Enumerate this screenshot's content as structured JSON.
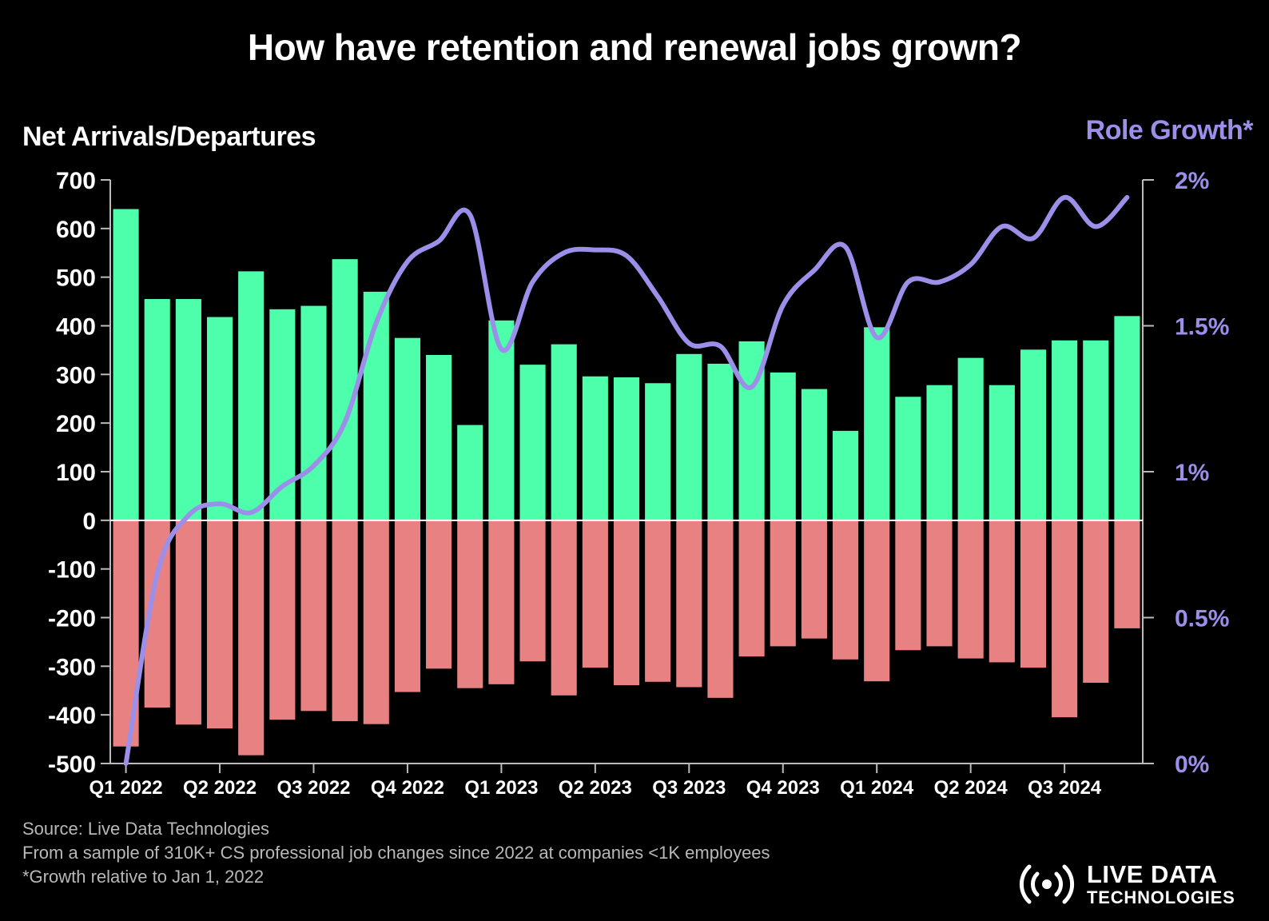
{
  "title": "How have retention and renewal jobs grown?",
  "footnotes": {
    "source": "Source: Live Data Technologies",
    "sample": "From a sample of 310K+ CS professional job changes since 2022 at companies <1K employees",
    "growth_note": "*Growth relative to Jan 1, 2022"
  },
  "logo": {
    "line1": "LIVE DATA",
    "line2": "TECHNOLOGIES"
  },
  "colors": {
    "background": "#000000",
    "arrivals": "#4dffaa",
    "departures": "#e88282",
    "role_growth": "#9b8fea",
    "axis": "#bbbbbb",
    "text": "#ffffff"
  },
  "chart_data": {
    "type": "bar",
    "title": "How have retention and renewal jobs grown?",
    "ylabel": "Net Arrivals/Departures",
    "y2label": "Role Growth*",
    "ylim": [
      -500,
      700
    ],
    "y2lim": [
      0,
      2
    ],
    "yticks": [
      700,
      600,
      500,
      400,
      300,
      200,
      100,
      0,
      -100,
      -200,
      -300,
      -400,
      -500
    ],
    "y2ticks": [
      {
        "value": 2,
        "label": "2%"
      },
      {
        "value": 1.5,
        "label": "1.5%"
      },
      {
        "value": 1,
        "label": "1%"
      },
      {
        "value": 0.5,
        "label": "0.5%"
      },
      {
        "value": 0,
        "label": "0%"
      }
    ],
    "xtick_labels": [
      {
        "index": 0,
        "label": "Q1 2022"
      },
      {
        "index": 3,
        "label": "Q2 2022"
      },
      {
        "index": 6,
        "label": "Q3 2022"
      },
      {
        "index": 9,
        "label": "Q4 2022"
      },
      {
        "index": 12,
        "label": "Q1 2023"
      },
      {
        "index": 15,
        "label": "Q2 2023"
      },
      {
        "index": 18,
        "label": "Q3 2023"
      },
      {
        "index": 21,
        "label": "Q4 2023"
      },
      {
        "index": 24,
        "label": "Q1 2024"
      },
      {
        "index": 27,
        "label": "Q2 2024"
      },
      {
        "index": 30,
        "label": "Q3 2024"
      }
    ],
    "period_count": 33,
    "series": [
      {
        "name": "Arrivals",
        "kind": "bar",
        "values": [
          640,
          455,
          455,
          418,
          512,
          434,
          441,
          537,
          470,
          375,
          340,
          196,
          411,
          320,
          362,
          296,
          294,
          282,
          342,
          322,
          368,
          304,
          270,
          184,
          397,
          254,
          278,
          334,
          278,
          351,
          370,
          370,
          420
        ]
      },
      {
        "name": "Departures",
        "kind": "bar",
        "values": [
          -465,
          -385,
          -420,
          -428,
          -483,
          -410,
          -392,
          -413,
          -419,
          -353,
          -305,
          -345,
          -337,
          -290,
          -360,
          -303,
          -339,
          -332,
          -343,
          -365,
          -280,
          -259,
          -243,
          -286,
          -331,
          -267,
          -259,
          -284,
          -292,
          -303,
          -405,
          -334,
          -222
        ]
      },
      {
        "name": "Role Growth",
        "kind": "line",
        "axis": "right",
        "unit": "%",
        "values": [
          0.0,
          0.65,
          0.85,
          0.89,
          0.86,
          0.95,
          1.02,
          1.17,
          1.51,
          1.72,
          1.79,
          1.88,
          1.42,
          1.65,
          1.75,
          1.76,
          1.74,
          1.6,
          1.44,
          1.43,
          1.29,
          1.57,
          1.69,
          1.77,
          1.46,
          1.65,
          1.65,
          1.71,
          1.84,
          1.8,
          1.94,
          1.84,
          1.94
        ]
      }
    ]
  }
}
